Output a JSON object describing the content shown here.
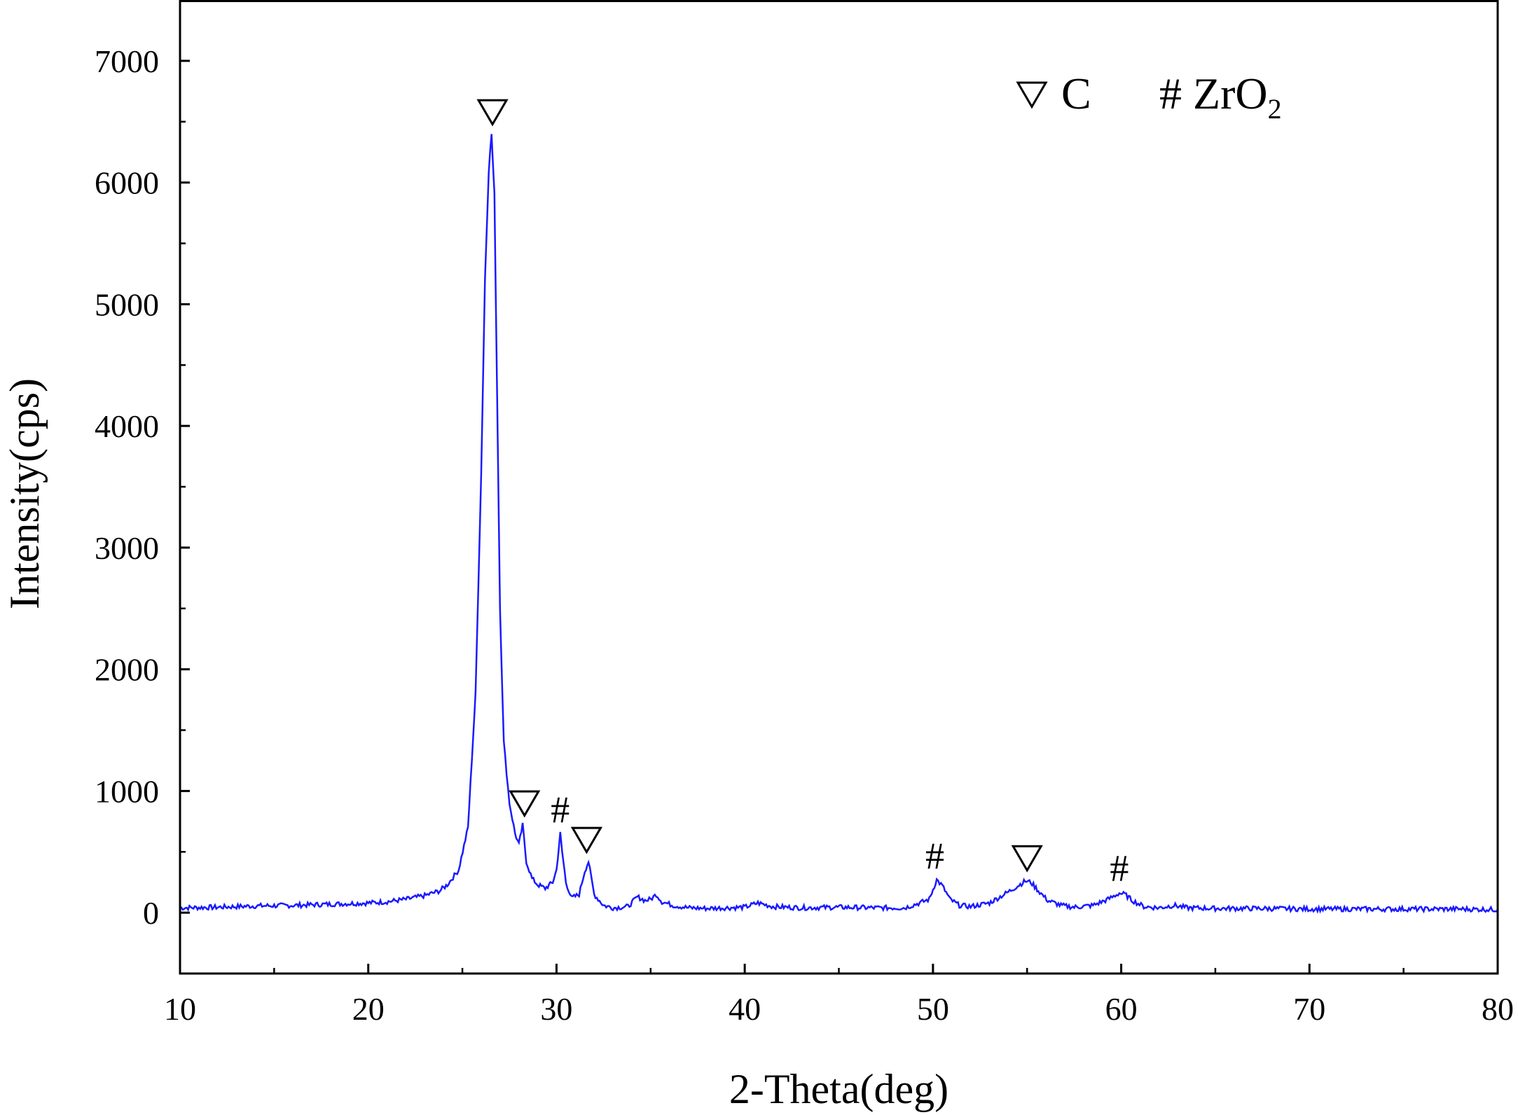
{
  "chart_data": {
    "type": "line",
    "xlabel": "2-Theta(deg)",
    "ylabel": "Intensity(cps)",
    "xlim": [
      10,
      80
    ],
    "ylim": [
      -500,
      7500
    ],
    "x_ticks": [
      10,
      20,
      30,
      40,
      50,
      60,
      70,
      80
    ],
    "y_ticks": [
      0,
      1000,
      2000,
      3000,
      4000,
      5000,
      6000,
      7000
    ],
    "grid": false,
    "line_color": "#1a1aff",
    "legend": {
      "position": "top-right",
      "items": [
        {
          "symbol": "triangle-down",
          "label": "C"
        },
        {
          "symbol": "#",
          "label": "ZrO",
          "subscript": "2"
        }
      ]
    },
    "series": [
      {
        "x": [
          10,
          12,
          14,
          16,
          18,
          20,
          21,
          22,
          23,
          23.8,
          24.2,
          24.8,
          25.3,
          25.7,
          26.0,
          26.2,
          26.4,
          26.55,
          26.7,
          26.85,
          27.0,
          27.2,
          27.5,
          27.8,
          28.0,
          28.2,
          28.4,
          28.7,
          29.0,
          29.4,
          29.8,
          30.0,
          30.2,
          30.3,
          30.5,
          30.8,
          31.2,
          31.5,
          31.7,
          32.0,
          32.5,
          33.0,
          33.8,
          34.3,
          34.7,
          35.0,
          35.3,
          35.6,
          36.2,
          37,
          38,
          39,
          40,
          40.7,
          41.5,
          43,
          45,
          47,
          48.5,
          49.3,
          49.8,
          50.2,
          50.5,
          50.9,
          51.4,
          52,
          53,
          54,
          54.5,
          54.9,
          55.2,
          55.6,
          56.1,
          56.8,
          57.5,
          58.5,
          59.3,
          59.9,
          60.2,
          60.6,
          61.2,
          62,
          62.8,
          63.5,
          65,
          67,
          70,
          73,
          76,
          78,
          80
        ],
        "y": [
          40,
          45,
          55,
          60,
          70,
          80,
          90,
          110,
          140,
          180,
          230,
          350,
          700,
          1800,
          3600,
          5200,
          6100,
          6400,
          5900,
          4200,
          2500,
          1400,
          900,
          650,
          560,
          720,
          420,
          280,
          230,
          200,
          250,
          350,
          650,
          500,
          250,
          120,
          150,
          340,
          420,
          150,
          60,
          40,
          50,
          130,
          100,
          110,
          150,
          90,
          60,
          40,
          35,
          40,
          45,
          80,
          50,
          40,
          45,
          40,
          40,
          80,
          110,
          270,
          220,
          110,
          60,
          50,
          80,
          170,
          220,
          260,
          250,
          180,
          100,
          60,
          45,
          60,
          110,
          160,
          150,
          100,
          50,
          40,
          60,
          40,
          35,
          35,
          30,
          30,
          30,
          30,
          25
        ]
      }
    ],
    "annotations": [
      {
        "symbol": "triangle-down",
        "text": "",
        "x": 26.6,
        "y": 6400
      },
      {
        "symbol": "triangle-down",
        "text": "",
        "x": 28.3,
        "y": 720
      },
      {
        "symbol": "#",
        "text": "#",
        "x": 30.2,
        "y": 650
      },
      {
        "symbol": "triangle-down",
        "text": "",
        "x": 31.6,
        "y": 420
      },
      {
        "symbol": "#",
        "text": "#",
        "x": 50.1,
        "y": 270
      },
      {
        "symbol": "triangle-down",
        "text": "",
        "x": 55.0,
        "y": 270
      },
      {
        "symbol": "#",
        "text": "#",
        "x": 59.9,
        "y": 170
      }
    ]
  }
}
